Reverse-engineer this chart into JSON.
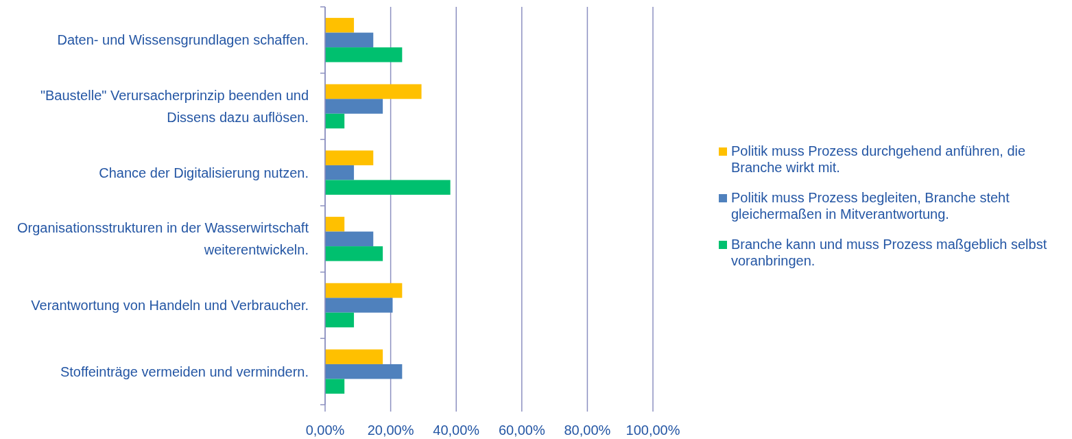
{
  "chart_data": {
    "type": "bar",
    "orientation": "horizontal",
    "categories": [
      "Daten- und Wissensgrundlagen schaffen.",
      "\"Baustelle\" Verursacherprinzip beenden und Dissens dazu auflösen.",
      "Chance der Digitalisierung nutzen.",
      "Organisationsstrukturen in der Wasserwirtschaft weiterentwickeln.",
      "Verantwortung von Handeln und Verbraucher.",
      "Stoffeinträge vermeiden und vermindern."
    ],
    "series": [
      {
        "name": "Politik muss Prozess durchgehend anführen, die Branche wirkt mit.",
        "color": "#ffc000",
        "values": [
          8.8,
          29.4,
          14.7,
          5.9,
          23.5,
          17.6
        ]
      },
      {
        "name": "Politik muss Prozess begleiten, Branche steht gleichermaßen in Mitverantwortung.",
        "color": "#4f81bd",
        "values": [
          14.7,
          17.6,
          8.8,
          14.7,
          20.6,
          23.5
        ]
      },
      {
        "name": "Branche kann und muss Prozess maßgeblich selbst voranbringen.",
        "color": "#00c06f",
        "values": [
          23.5,
          5.9,
          38.2,
          17.6,
          8.8,
          5.9
        ]
      }
    ],
    "xlim": [
      0,
      100
    ],
    "xticks": [
      {
        "value": 0,
        "label": "0,00%"
      },
      {
        "value": 20,
        "label": "20,00%"
      },
      {
        "value": 40,
        "label": "40,00%"
      },
      {
        "value": 60,
        "label": "60,00%"
      },
      {
        "value": 80,
        "label": "80,00%"
      },
      {
        "value": 100,
        "label": "100,00%"
      }
    ],
    "grid": "x",
    "legend": "right"
  }
}
